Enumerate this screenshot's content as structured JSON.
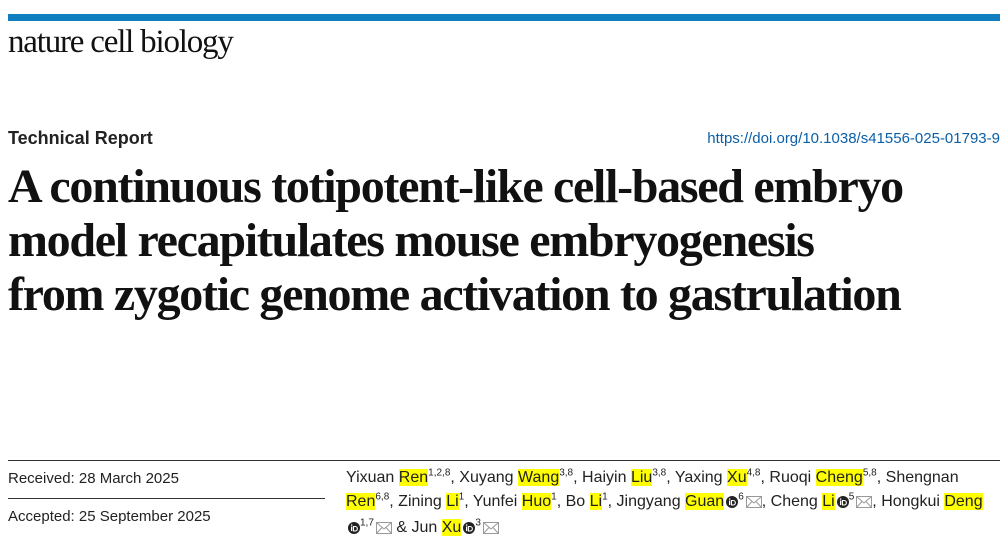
{
  "journal": "nature cell biology",
  "article_type": "Technical Report",
  "doi": "https://doi.org/10.1038/s41556-025-01793-9",
  "title": "A continuous totipotent-like cell-based embryo model recapitulates mouse embryogenesis from zygotic genome activation to gastrulation",
  "dates": [
    {
      "label": "Received: 28 March 2025"
    },
    {
      "label": "Accepted: 25 September 2025"
    }
  ],
  "authors": {
    "separator": ",",
    "conjunction": "&",
    "list": [
      {
        "given": "Yixuan",
        "surname": "Ren",
        "affiliations": "1,2,8",
        "orcid": false,
        "corresponding": false
      },
      {
        "given": "Xuyang",
        "surname": "Wang",
        "affiliations": "3,8",
        "orcid": false,
        "corresponding": false
      },
      {
        "given": "Haiyin",
        "surname": "Liu",
        "affiliations": "3,8",
        "orcid": false,
        "corresponding": false
      },
      {
        "given": "Yaxing",
        "surname": "Xu",
        "affiliations": "4,8",
        "orcid": false,
        "corresponding": false
      },
      {
        "given": "Ruoqi",
        "surname": "Cheng",
        "affiliations": "5,8",
        "orcid": false,
        "corresponding": false
      },
      {
        "given": "Shengnan",
        "surname": "Ren",
        "affiliations": "6,8",
        "orcid": false,
        "corresponding": false
      },
      {
        "given": "Zining",
        "surname": "Li",
        "affiliations": "1",
        "orcid": false,
        "corresponding": false
      },
      {
        "given": "Yunfei",
        "surname": "Huo",
        "affiliations": "1",
        "orcid": false,
        "corresponding": false
      },
      {
        "given": "Bo",
        "surname": "Li",
        "affiliations": "1",
        "orcid": false,
        "corresponding": false
      },
      {
        "given": "Jingyang",
        "surname": "Guan",
        "affiliations": "6",
        "orcid": true,
        "corresponding": true
      },
      {
        "given": "Cheng",
        "surname": "Li",
        "affiliations": "5",
        "orcid": true,
        "corresponding": true
      },
      {
        "given": "Hongkui",
        "surname": "Deng",
        "affiliations": "1,7",
        "orcid": true,
        "corresponding": true
      },
      {
        "given": "Jun",
        "surname": "Xu",
        "affiliations": "3",
        "orcid": true,
        "corresponding": true
      }
    ]
  }
}
